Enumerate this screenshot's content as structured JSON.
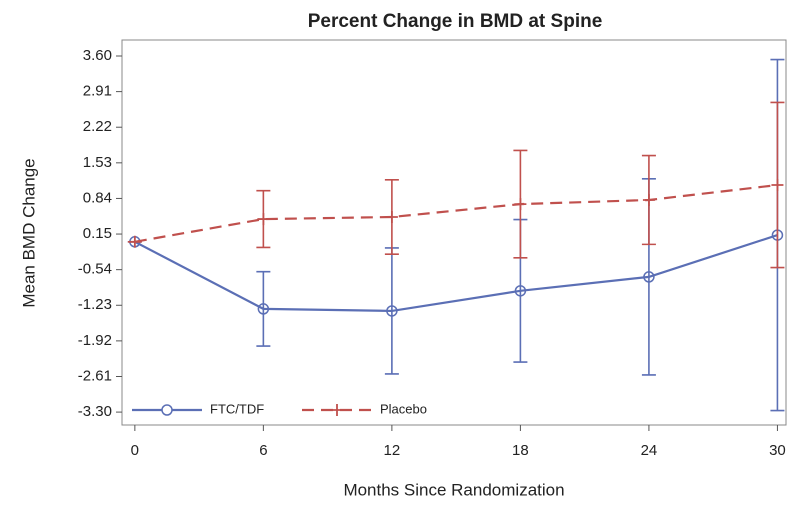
{
  "chart_data": {
    "type": "line",
    "title": "Percent Change in BMD at Spine",
    "xlabel": "Months Since Randomization",
    "ylabel": "Mean BMD Change",
    "x": [
      0,
      6,
      12,
      18,
      24,
      30
    ],
    "series": [
      {
        "name": "FTC/TDF",
        "color": "#5b6fb5",
        "marker": "circle",
        "dash": false,
        "values": [
          0.0,
          -1.3,
          -1.34,
          -0.95,
          -0.68,
          0.13
        ],
        "errors": [
          0,
          0.72,
          1.22,
          1.38,
          1.9,
          3.4
        ]
      },
      {
        "name": "Placebo",
        "color": "#c0504d",
        "marker": "plus",
        "dash": true,
        "values": [
          0.0,
          0.44,
          0.48,
          0.73,
          0.81,
          1.1
        ],
        "errors": [
          0,
          0.55,
          0.72,
          1.04,
          0.86,
          1.6
        ]
      }
    ],
    "xlim": [
      -0.6,
      30.4
    ],
    "xticks": [
      0,
      6,
      12,
      18,
      24,
      30
    ],
    "ylim": [
      -3.55,
      3.91
    ],
    "yticks": [
      {
        "value": 3.6,
        "label": "3.60"
      },
      2.91,
      2.22,
      1.53,
      0.84,
      0.15,
      -0.54,
      -1.23,
      -1.92,
      -2.61,
      {
        "value": -3.3,
        "label": "-3.30"
      }
    ],
    "legend": "lower left"
  }
}
